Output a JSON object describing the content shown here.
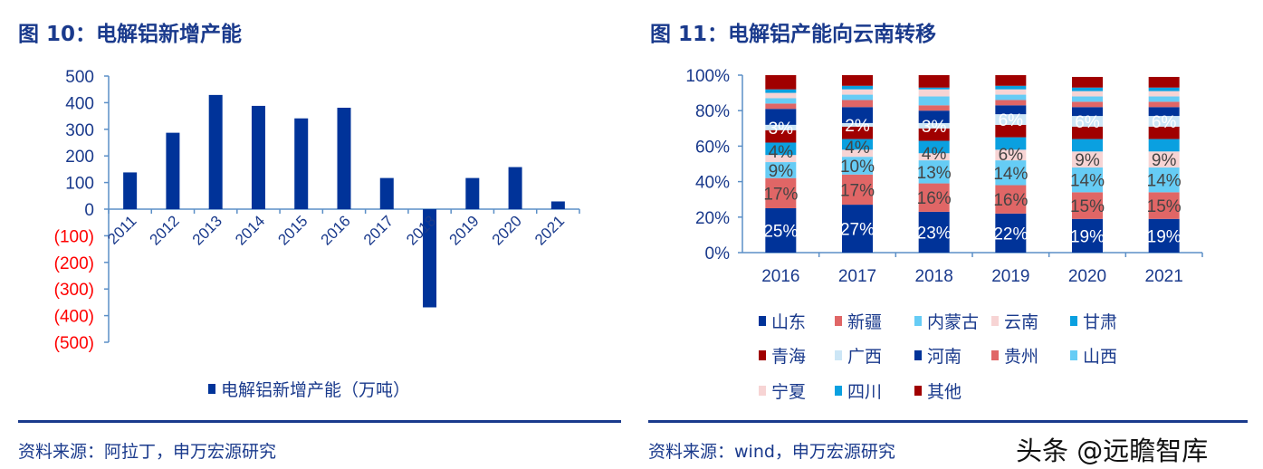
{
  "left": {
    "title": "图 10：电解铝新增产能",
    "source": "资料来源：阿拉丁，申万宏源研究"
  },
  "right": {
    "title": "图 11：电解铝产能向云南转移",
    "source": "资料来源：wind，申万宏源研究"
  },
  "watermark": "头条 @远瞻智库",
  "colors": {
    "title": "#1a3a8c",
    "bar": "#003399",
    "negative_tick": "#ff0000"
  },
  "chart_data": [
    {
      "type": "bar",
      "categories": [
        "2011",
        "2012",
        "2013",
        "2014",
        "2015",
        "2016",
        "2017",
        "2018",
        "2019",
        "2020",
        "2021"
      ],
      "series": [
        {
          "name": "电解铝新增产能（万吨）",
          "values": [
            138,
            287,
            429,
            388,
            341,
            381,
            117,
            -369,
            117,
            158,
            29
          ],
          "color": "#003399"
        }
      ],
      "ylim": [
        -500,
        500
      ],
      "yticks": [
        500,
        400,
        300,
        200,
        100,
        0,
        -100,
        -200,
        -300,
        -400,
        -500
      ],
      "ytick_labels": [
        "500",
        "400",
        "300",
        "200",
        "100",
        "0",
        "(100)",
        "(200)",
        "(300)",
        "(400)",
        "(500)"
      ],
      "legend": "bottom",
      "grid": false
    },
    {
      "type": "bar",
      "stacked": true,
      "categories": [
        "2016",
        "2017",
        "2018",
        "2019",
        "2020",
        "2021"
      ],
      "ylim": [
        0,
        100
      ],
      "ytick_labels": [
        "0%",
        "20%",
        "40%",
        "60%",
        "80%",
        "100%"
      ],
      "legend": "bottom",
      "grid": false,
      "series": [
        {
          "name": "山东",
          "color": "#003399",
          "values": [
            25,
            27,
            23,
            22,
            19,
            19
          ],
          "labels": [
            "25%",
            "27%",
            "23%",
            "22%",
            "19%",
            "19%"
          ],
          "label_color": "#ffffff"
        },
        {
          "name": "新疆",
          "color": "#e06666",
          "values": [
            17,
            17,
            16,
            16,
            15,
            15
          ],
          "labels": [
            "17%",
            "17%",
            "16%",
            "16%",
            "15%",
            "15%"
          ],
          "label_color": "#444444"
        },
        {
          "name": "内蒙古",
          "color": "#66ccf5",
          "values": [
            9,
            10,
            13,
            14,
            14,
            14
          ],
          "labels": [
            "9%",
            "10%",
            "13%",
            "14%",
            "14%",
            "14%"
          ],
          "label_color": "#444444"
        },
        {
          "name": "云南",
          "color": "#f7d4d4",
          "values": [
            4,
            4,
            4,
            6,
            9,
            9
          ],
          "labels": [
            "4%",
            "4%",
            "4%",
            "6%",
            "9%",
            "9%"
          ],
          "label_color": "#444444"
        },
        {
          "name": "甘肃",
          "color": "#0aa0e0",
          "values": [
            7,
            6,
            7,
            7,
            7,
            7
          ]
        },
        {
          "name": "青海",
          "color": "#a00000",
          "values": [
            7,
            7,
            7,
            7,
            7,
            7
          ]
        },
        {
          "name": "广西",
          "color": "#cce6f6",
          "values": [
            3,
            2,
            3,
            6,
            6,
            6
          ],
          "labels": [
            "3%",
            "2%",
            "3%",
            "6%",
            "6%",
            "6%"
          ],
          "label_color": "#ffffff"
        },
        {
          "name": "河南",
          "color": "#003399",
          "values": [
            9,
            9,
            7,
            5,
            5,
            5
          ]
        },
        {
          "name": "贵州",
          "color": "#e06666",
          "values": [
            3,
            4,
            3,
            3,
            3,
            3
          ]
        },
        {
          "name": "山西",
          "color": "#66ccf5",
          "values": [
            3,
            3,
            5,
            3,
            3,
            3
          ]
        },
        {
          "name": "宁夏",
          "color": "#f7d4d4",
          "values": [
            3,
            3,
            4,
            3,
            3,
            3
          ]
        },
        {
          "name": "四川",
          "color": "#0aa0e0",
          "values": [
            2,
            2,
            1,
            2,
            2,
            2
          ]
        },
        {
          "name": "其他",
          "color": "#a00000",
          "values": [
            8,
            6,
            7,
            6,
            6,
            6
          ]
        }
      ]
    }
  ]
}
